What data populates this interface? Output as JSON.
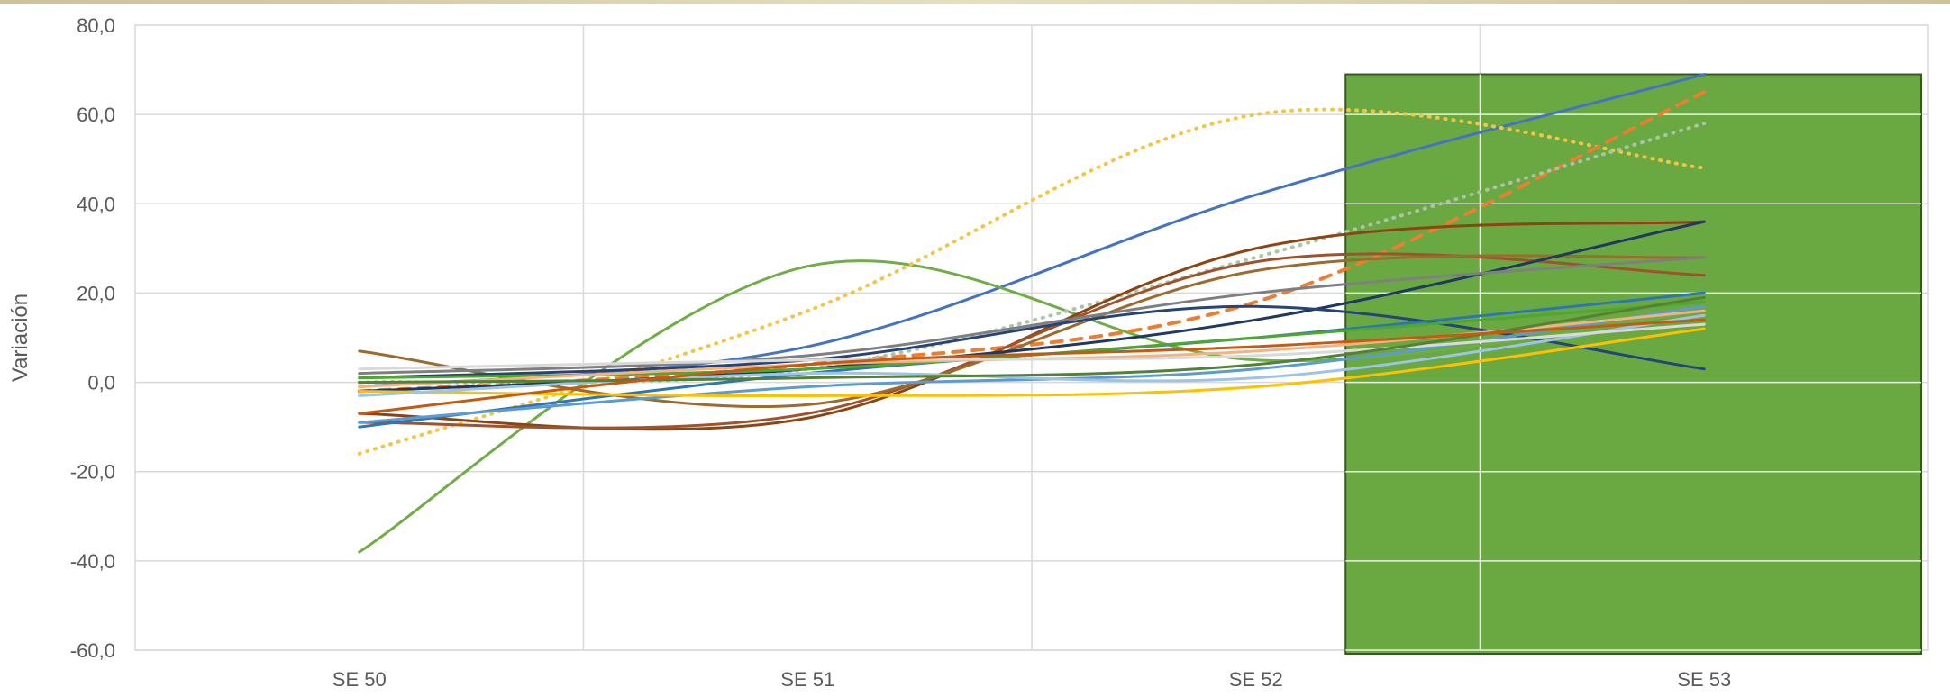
{
  "chart_data": {
    "type": "line",
    "ylabel": "Variación",
    "categories": [
      "SE 50",
      "SE 51",
      "SE 52",
      "SE 53"
    ],
    "y_ticks": [
      "80,0",
      "60,0",
      "40,0",
      "20,0",
      "0,0",
      "-20,0",
      "-40,0",
      "-60,0"
    ],
    "ylim": [
      -60,
      80
    ],
    "grid": true,
    "highlight": {
      "from_category": "SE 52",
      "to_category": "SE 53",
      "top": 69,
      "color": "#6aa842"
    },
    "series": [
      {
        "color": "#4472c4",
        "dash": "solid",
        "values": [
          -1,
          8,
          42,
          69
        ]
      },
      {
        "color": "#70ad47",
        "dash": "solid",
        "values": [
          -38,
          26,
          5,
          16
        ]
      },
      {
        "color": "#f4c542",
        "dash": "dot",
        "values": [
          -16,
          16,
          60,
          48
        ]
      },
      {
        "color": "#ed7d31",
        "dash": "dash",
        "values": [
          -2,
          4,
          18,
          65
        ]
      },
      {
        "color": "#a9c4a8",
        "dash": "dot",
        "values": [
          0,
          3,
          28,
          58
        ]
      },
      {
        "color": "#8b4513",
        "dash": "solid",
        "values": [
          -7,
          -8,
          30,
          36
        ]
      },
      {
        "color": "#a0522d",
        "dash": "solid",
        "values": [
          -9,
          -7,
          27,
          24
        ]
      },
      {
        "color": "#9c6b2e",
        "dash": "solid",
        "values": [
          7,
          -5,
          25,
          28
        ]
      },
      {
        "color": "#1f3864",
        "dash": "solid",
        "values": [
          -2,
          3,
          14,
          36
        ]
      },
      {
        "color": "#264478",
        "dash": "solid",
        "values": [
          1,
          5,
          17,
          3
        ]
      },
      {
        "color": "#2e75b6",
        "dash": "solid",
        "values": [
          -10,
          2,
          10,
          20
        ]
      },
      {
        "color": "#5b9bd5",
        "dash": "solid",
        "values": [
          -9,
          -1,
          3,
          17
        ]
      },
      {
        "color": "#7f7f7f",
        "dash": "solid",
        "values": [
          2,
          6,
          20,
          28
        ]
      },
      {
        "color": "#4ea72e",
        "dash": "solid",
        "values": [
          1,
          3,
          10,
          18
        ]
      },
      {
        "color": "#f4b183",
        "dash": "solid",
        "values": [
          -1,
          4,
          7,
          16
        ]
      },
      {
        "color": "#ffc000",
        "dash": "solid",
        "values": [
          -2,
          -3,
          -1,
          12
        ]
      },
      {
        "color": "#9dc3e6",
        "dash": "solid",
        "values": [
          -3,
          2,
          1,
          15
        ]
      },
      {
        "color": "#d9d9d9",
        "dash": "solid",
        "values": [
          3,
          5,
          6,
          13
        ]
      },
      {
        "color": "#548235",
        "dash": "solid",
        "values": [
          0,
          1,
          4,
          19
        ]
      },
      {
        "color": "#c55a11",
        "dash": "solid",
        "values": [
          -7,
          4,
          8,
          14
        ]
      }
    ]
  }
}
